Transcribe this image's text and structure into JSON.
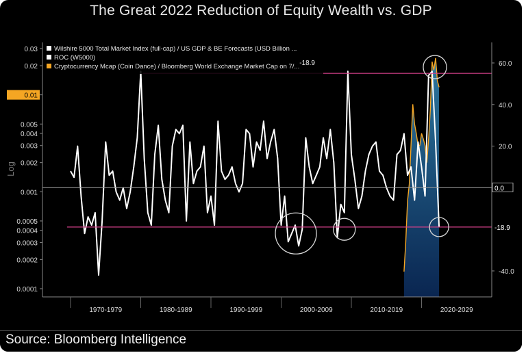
{
  "title": "The Great 2022 Reduction of Equity Wealth vs. GDP",
  "source": "Source: Bloomberg Intelligence",
  "chart_data": {
    "type": "line",
    "left_axis": {
      "label": "Log",
      "scale": "log",
      "ticks": [
        "0.03",
        "0.02",
        "0.01",
        "0.005",
        "0.004",
        "0.003",
        "0.002",
        "0.001",
        "0.0005",
        "0.0004",
        "0.0003",
        "0.0002",
        "0.0001"
      ],
      "highlight_tick": "0.01"
    },
    "right_axis": {
      "ticks": [
        "60.0",
        "40.0",
        "20.0",
        "0.0",
        "-40.0"
      ],
      "last_value_label": "-18.9",
      "zero_label": "0.0"
    },
    "x_axis": {
      "categories": [
        "1970-1979",
        "1980-1989",
        "1990-1999",
        "2000-2009",
        "2010-2019",
        "2020-2029"
      ]
    },
    "legend": {
      "placement": "top-left",
      "entries": [
        {
          "label": "Wilshire 5000 Total Market Index (full-cap) / US GDP & BE Forecasts (USD Billion ...",
          "color": "#ffffff"
        },
        {
          "label": "ROC (W5000)",
          "color": "#ffffff",
          "value": "-18.9"
        },
        {
          "label": "Cryptocurrency Mcap (Coin Dance) / Bloomberg World Exchange Market Cap on 7/...",
          "color": "#f5a623"
        }
      ]
    },
    "reference_lines": {
      "upper_roc": 55,
      "lower_roc": -18.9,
      "zero": 0
    },
    "series": [
      {
        "name": "ROC (W5000)",
        "axis": "right",
        "color": "#ffffff",
        "x": [
          1970.0,
          1970.5,
          1971.0,
          1971.5,
          1972.0,
          1972.5,
          1973.0,
          1973.5,
          1974.0,
          1974.5,
          1975.0,
          1975.5,
          1976.0,
          1976.5,
          1977.0,
          1977.5,
          1978.0,
          1978.5,
          1979.0,
          1979.5,
          1980.0,
          1980.5,
          1981.0,
          1981.5,
          1982.0,
          1982.5,
          1983.0,
          1983.5,
          1984.0,
          1984.5,
          1985.0,
          1985.5,
          1986.0,
          1986.5,
          1987.0,
          1987.5,
          1988.0,
          1988.5,
          1989.0,
          1989.5,
          1990.0,
          1990.5,
          1991.0,
          1991.5,
          1992.0,
          1992.5,
          1993.0,
          1993.5,
          1994.0,
          1994.5,
          1995.0,
          1995.5,
          1996.0,
          1996.5,
          1997.0,
          1997.5,
          1998.0,
          1998.5,
          1999.0,
          1999.5,
          2000.0,
          2000.5,
          2001.0,
          2001.5,
          2002.0,
          2002.5,
          2003.0,
          2003.5,
          2004.0,
          2004.5,
          2005.0,
          2005.5,
          2006.0,
          2006.5,
          2007.0,
          2007.5,
          2008.0,
          2008.5,
          2009.0,
          2009.5,
          2010.0,
          2010.5,
          2011.0,
          2011.5,
          2012.0,
          2012.5,
          2013.0,
          2013.5,
          2014.0,
          2014.5,
          2015.0,
          2015.5,
          2016.0,
          2016.5,
          2017.0,
          2017.5,
          2018.0,
          2018.5,
          2019.0,
          2019.5,
          2020.0,
          2020.5,
          2021.0,
          2021.5,
          2022.0,
          2022.5
        ],
        "values": [
          8,
          5,
          20,
          -4,
          -22,
          -14,
          -18,
          -12,
          -42,
          -16,
          22,
          6,
          8,
          -2,
          -6,
          0,
          -10,
          -2,
          10,
          24,
          56,
          14,
          -12,
          -18,
          16,
          30,
          4,
          -6,
          -12,
          20,
          28,
          26,
          30,
          -16,
          22,
          2,
          8,
          10,
          20,
          -12,
          -4,
          -18,
          32,
          8,
          4,
          6,
          10,
          2,
          -2,
          2,
          28,
          26,
          10,
          22,
          18,
          32,
          14,
          22,
          28,
          14,
          -18,
          -4,
          -26,
          -22,
          -18,
          -28,
          -20,
          24,
          10,
          2,
          6,
          10,
          24,
          14,
          28,
          12,
          -24,
          -8,
          -12,
          56,
          16,
          4,
          -10,
          -4,
          8,
          16,
          20,
          22,
          8,
          6,
          0,
          -4,
          -6,
          16,
          18,
          26,
          6,
          10,
          -6,
          22,
          10,
          -4,
          54,
          56,
          22,
          -18.9
        ]
      },
      {
        "name": "Cryptocurrency Mcap (Coin Dance) / Bloomberg World Exchange Market Cap on 7/...",
        "axis": "left",
        "color": "#f5a623",
        "x": [
          2017.5,
          2017.75,
          2018.0,
          2018.25,
          2018.5,
          2018.75,
          2019.0,
          2019.25,
          2019.5,
          2019.75,
          2020.0,
          2020.25,
          2020.5,
          2020.75,
          2021.0,
          2021.25,
          2021.5,
          2021.75,
          2022.0,
          2022.25,
          2022.5
        ],
        "values": [
          0.00015,
          0.0003,
          0.0008,
          0.0012,
          0.003,
          0.008,
          0.005,
          0.004,
          0.003,
          0.003,
          0.004,
          0.0035,
          0.003,
          0.002,
          0.0035,
          0.007,
          0.022,
          0.018,
          0.024,
          0.014,
          0.012
        ]
      }
    ],
    "xlim": [
      1966,
      2030
    ],
    "right_ylim": [
      -40,
      60
    ]
  }
}
